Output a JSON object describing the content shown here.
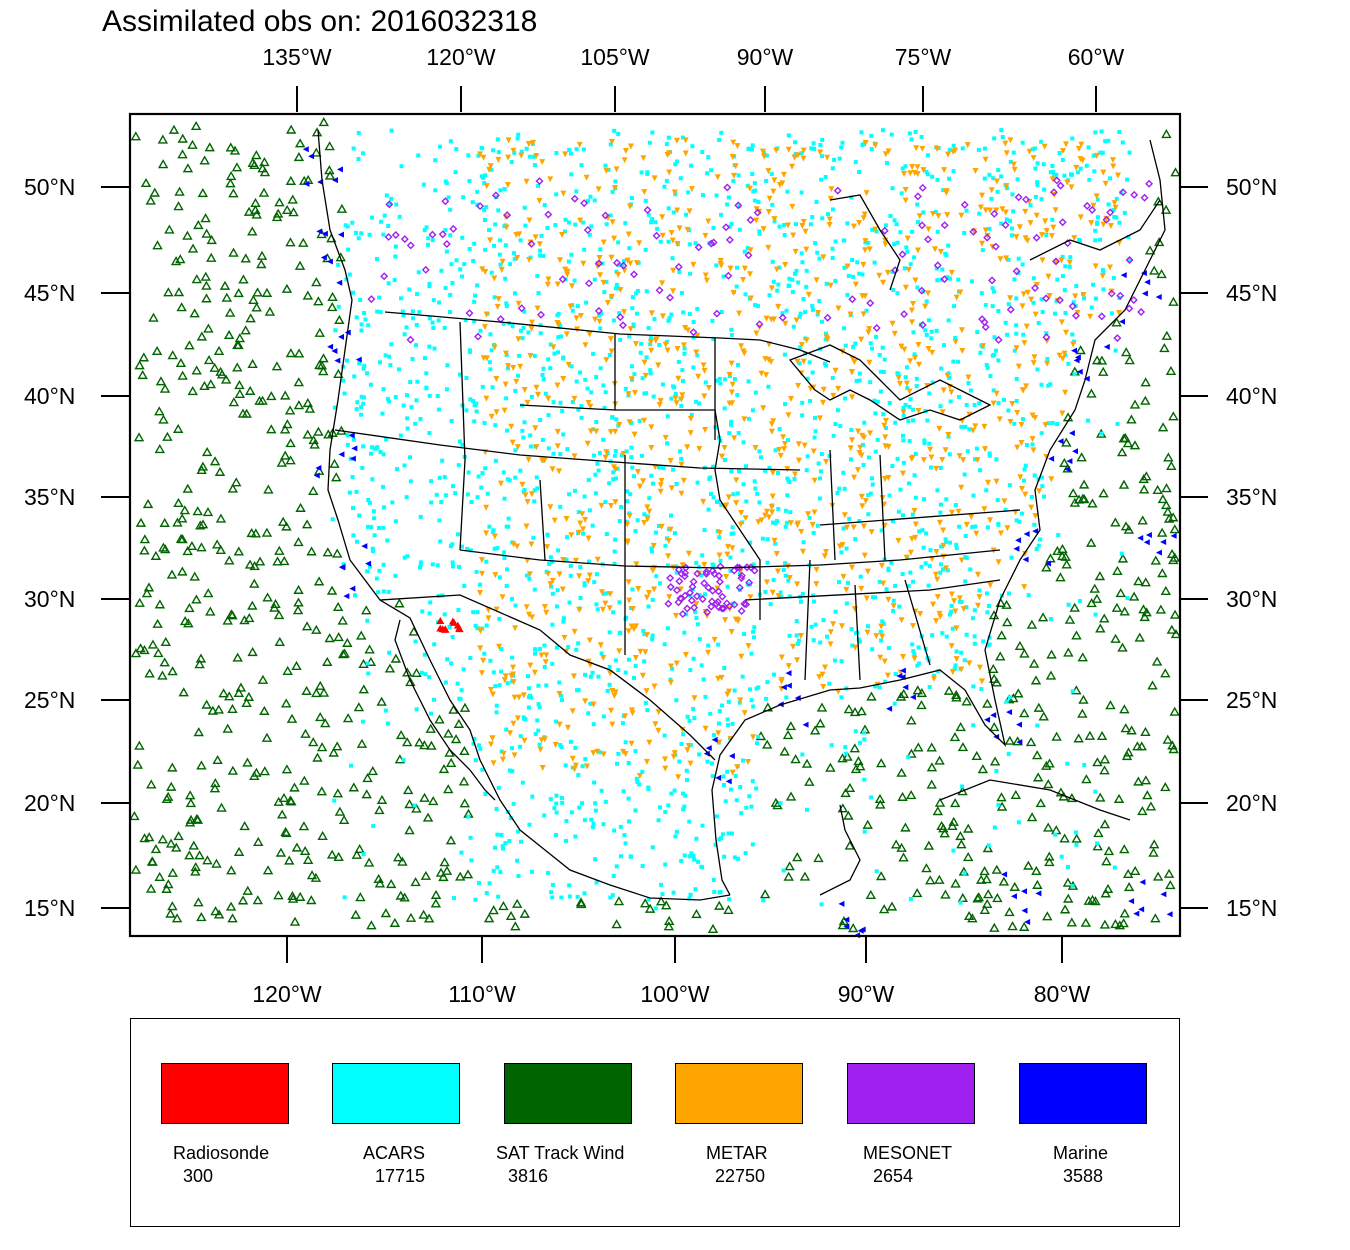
{
  "title": "Assimilated obs on: 2016032318",
  "top_axis": [
    "135°W",
    "120°W",
    "105°W",
    "90°W",
    "75°W",
    "60°W"
  ],
  "bottom_axis": [
    "120°W",
    "110°W",
    "100°W",
    "90°W",
    "80°W"
  ],
  "left_axis": [
    "50°N",
    "45°N",
    "40°N",
    "35°N",
    "30°N",
    "25°N",
    "20°N",
    "15°N"
  ],
  "right_axis": [
    "50°N",
    "45°N",
    "40°N",
    "35°N",
    "30°N",
    "25°N",
    "20°N",
    "15°N"
  ],
  "legend": [
    {
      "name": "Radiosonde",
      "count": "300",
      "color": "#ff0000",
      "marker": "filled-triangle"
    },
    {
      "name": "ACARS",
      "count": "17715",
      "color": "#00ffff",
      "marker": "square-dot"
    },
    {
      "name": "SAT Track Wind",
      "count": "3816",
      "color": "#006400",
      "marker": "hollow-triangle"
    },
    {
      "name": "METAR",
      "count": "22750",
      "color": "#ffa500",
      "marker": "inverted-triangle"
    },
    {
      "name": "MESONET",
      "count": "2654",
      "color": "#a020f0",
      "marker": "hollow-diamond"
    },
    {
      "name": "Marine",
      "count": "3588",
      "color": "#0000ff",
      "marker": "left-triangle"
    }
  ],
  "colors": {
    "coastline": "#000000",
    "frame": "#000000",
    "background": "#ffffff"
  }
}
